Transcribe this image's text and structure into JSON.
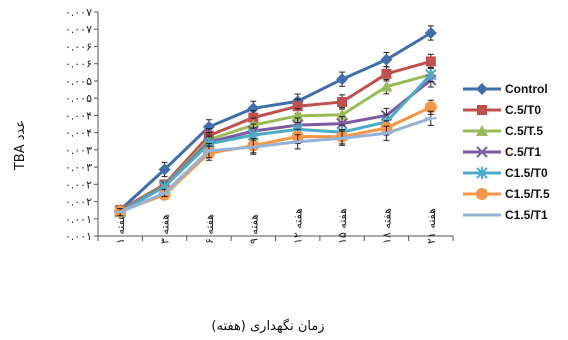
{
  "chart_data": {
    "type": "line",
    "title": "",
    "xlabel": "زمان نگهداری (هفته)",
    "ylabel": "عدد TBA",
    "categories": [
      "هفته ۱",
      "هفته ۳",
      "هفته ۶",
      "هفته ۹",
      "هفته ۱۲",
      "هفته ۱۵",
      "هفته ۱۸",
      "هفته ۲۱"
    ],
    "yticks": [
      "۰.۰۰۱",
      "۰.۰۰۱",
      "۰.۰۰۲",
      "۰.۰۰۲",
      "۰.۰۰۳",
      "۰.۰۰۳",
      "۰.۰۰۴",
      "۰.۰۰۴",
      "۰.۰۰۵",
      "۰.۰۰۵",
      "۰.۰۰۶",
      "۰.۰۰۶",
      "۰.۰۰۷",
      "۰.۰۰۷"
    ],
    "ylim": [
      0.001,
      0.0073
    ],
    "grid": false,
    "legend_position": "right",
    "series": [
      {
        "name": "Control",
        "color": "#3f6eab",
        "marker": "diamond",
        "values": [
          0.00173,
          0.00287,
          0.00407,
          0.00459,
          0.00479,
          0.00541,
          0.00596,
          0.00671
        ],
        "errors": [
          0.0001,
          0.0002,
          0.0002,
          0.0002,
          0.0002,
          0.0002,
          0.0002,
          0.0002
        ]
      },
      {
        "name": "C.5/T0",
        "color": "#c0504d",
        "marker": "square",
        "values": [
          0.00173,
          0.00245,
          0.00382,
          0.00433,
          0.00465,
          0.00477,
          0.00556,
          0.00591
        ],
        "errors": [
          0.0001,
          0.0001,
          0.0002,
          0.0002,
          0.0002,
          0.0002,
          0.0002,
          0.0002
        ]
      },
      {
        "name": "C.5/T.5",
        "color": "#9bbb59",
        "marker": "triangle",
        "values": [
          0.00171,
          0.00241,
          0.00371,
          0.00412,
          0.00438,
          0.00441,
          0.0052,
          0.00554
        ],
        "errors": [
          0.0001,
          0.0001,
          0.0002,
          0.0002,
          0.0002,
          0.0002,
          0.0002,
          0.0002
        ]
      },
      {
        "name": "C.5/T1",
        "color": "#7e5aa2",
        "marker": "x",
        "values": [
          0.00169,
          0.0024,
          0.00364,
          0.00395,
          0.00412,
          0.00416,
          0.00439,
          0.00539
        ],
        "errors": [
          0.0001,
          0.0001,
          0.0002,
          0.0002,
          0.0002,
          0.0002,
          0.0002,
          0.0002
        ]
      },
      {
        "name": "C1.5/T0",
        "color": "#4bacc6",
        "marker": "star",
        "values": [
          0.00167,
          0.00239,
          0.00359,
          0.00384,
          0.004,
          0.00392,
          0.00421,
          0.00554
        ],
        "errors": [
          0.0001,
          0.0001,
          0.0002,
          0.0002,
          0.0002,
          0.0002,
          0.0002,
          0.0002
        ]
      },
      {
        "name": "C1.5/T.5",
        "color": "#f79646",
        "marker": "circle",
        "values": [
          0.00169,
          0.00216,
          0.00333,
          0.00354,
          0.0038,
          0.00379,
          0.00404,
          0.00462
        ],
        "errors": [
          0.0001,
          0.0001,
          0.0002,
          0.0002,
          0.0002,
          0.0002,
          0.0002,
          0.0002
        ]
      },
      {
        "name": "C1.5/T1",
        "color": "#95b3d7",
        "marker": "plus",
        "values": [
          0.00167,
          0.00221,
          0.0034,
          0.0035,
          0.00365,
          0.00375,
          0.00389,
          0.00431
        ],
        "errors": [
          0.0001,
          0.0001,
          0.0002,
          0.0002,
          0.0002,
          0.0002,
          0.0002,
          0.0002
        ]
      }
    ]
  }
}
